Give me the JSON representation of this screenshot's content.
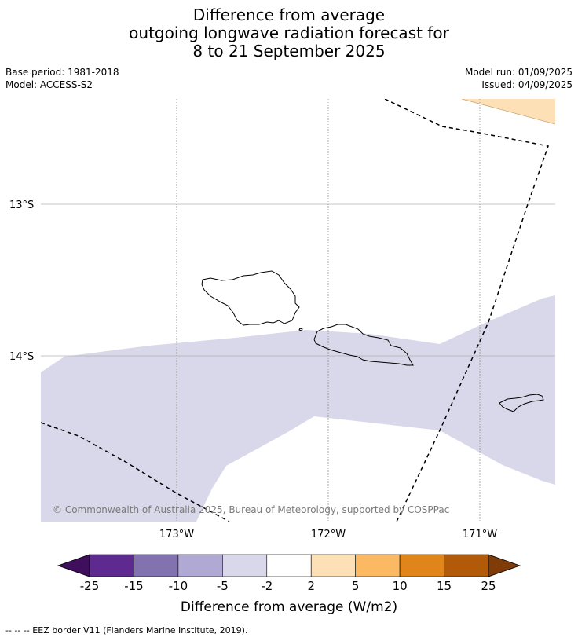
{
  "title": {
    "line1": "Difference from average",
    "line2": "outgoing longwave radiation forecast for",
    "line3": "8 to 21 September 2025"
  },
  "meta": {
    "base_period": "Base period: 1981-2018",
    "model": "Model: ACCESS-S2",
    "model_run": "Model run: 01/09/2025",
    "issued": "Issued: 04/09/2025"
  },
  "map": {
    "lat_labels": [
      "13°S",
      "14°S"
    ],
    "lon_labels": [
      "173°W",
      "172°W",
      "171°W"
    ],
    "copyright": "© Commonwealth of Australia 2025, Bureau of Meteorology, supported by COSPPac",
    "colors": {
      "anomaly_neg_small": "#d8d8ea",
      "anomaly_pos_small": "#fde0b5",
      "coastline": "#000000",
      "gridline": "#b0b0b0"
    }
  },
  "colorbar": {
    "ticks": [
      "-25",
      "-15",
      "-10",
      "-5",
      "-2",
      "2",
      "5",
      "10",
      "15",
      "25"
    ],
    "colors": [
      "#3f0e5c",
      "#5f2a8f",
      "#8273b0",
      "#b0a9d3",
      "#d8d8ea",
      "#ffffff",
      "#fde0b5",
      "#fbb964",
      "#e0851a",
      "#b05a0a",
      "#7f3b08"
    ],
    "label": "Difference from average (W/m2)"
  },
  "footer": {
    "legend": "--  --  -- EEZ border V11 (Flanders Marine Institute, 2019)."
  }
}
